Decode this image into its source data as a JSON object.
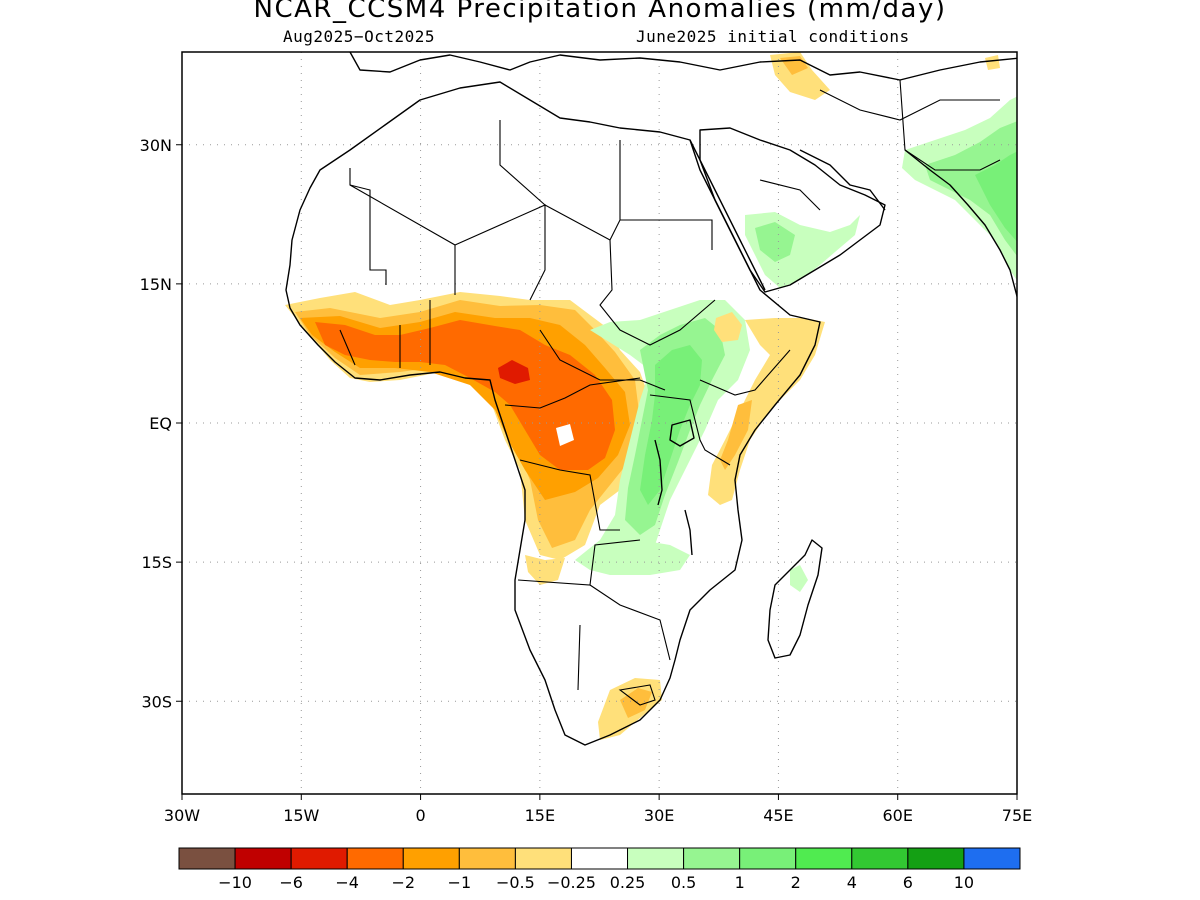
{
  "title": "NCAR_CCSM4 Precipitation Anomalies (mm/day)",
  "subtitle_left": "Aug2025−Oct2025",
  "subtitle_right": "June2025 initial conditions",
  "map": {
    "region": "Africa",
    "lon_range": [
      -30,
      75
    ],
    "lat_range": [
      -40,
      40
    ],
    "lon_ticks": [
      "30W",
      "15W",
      "0",
      "15E",
      "30E",
      "45E",
      "60E",
      "75E"
    ],
    "lat_ticks": [
      "30N",
      "15N",
      "EQ",
      "15S",
      "30S"
    ],
    "grid": "dotted"
  },
  "colorbar": {
    "colors": [
      "#7a5040",
      "#c00000",
      "#e01a00",
      "#ff6a00",
      "#ffa000",
      "#ffbe3c",
      "#ffe07a",
      "#ffffff",
      "#c8ffbe",
      "#96f591",
      "#78f078",
      "#50eb50",
      "#32c832",
      "#14a014",
      "#1e6ef0"
    ],
    "labels": [
      "−10",
      "−6",
      "−4",
      "−2",
      "−1",
      "−0.5",
      "−0.25",
      "0.25",
      "0.5",
      "1",
      "2",
      "4",
      "6",
      "10"
    ]
  },
  "chart_data": {
    "type": "heatmap",
    "title": "NCAR_CCSM4 Precipitation Anomalies (mm/day)",
    "period": "Aug2025−Oct2025",
    "initial_conditions": "June2025 initial conditions",
    "units": "mm/day",
    "levels": [
      -10,
      -6,
      -4,
      -2,
      -1,
      -0.5,
      -0.25,
      0.25,
      0.5,
      1,
      2,
      4,
      6,
      10
    ],
    "features": [
      {
        "area": "Sahel / West Africa (Sierra Leone to Nigeria)",
        "range": [
          -2,
          -0.5
        ]
      },
      {
        "area": "Central African Republic / Cameroon",
        "range": [
          -4,
          -1
        ]
      },
      {
        "area": "Gabon / Congo / DRC west",
        "range": [
          -2,
          -0.5
        ]
      },
      {
        "area": "Angola",
        "range": [
          -1,
          -0.25
        ]
      },
      {
        "area": "East African Rift / Uganda / Tanzania west",
        "range": [
          0.25,
          1
        ]
      },
      {
        "area": "Ethiopia highlands",
        "range": [
          0.25,
          0.5
        ]
      },
      {
        "area": "Kenya / Somalia",
        "range": [
          -1,
          -0.25
        ]
      },
      {
        "area": "Arabian Peninsula south-west",
        "range": [
          0.25,
          0.5
        ]
      },
      {
        "area": "India / Pakistan",
        "range": [
          0.25,
          1
        ]
      },
      {
        "area": "South Africa / Lesotho",
        "range": [
          -1,
          -0.25
        ]
      }
    ]
  }
}
